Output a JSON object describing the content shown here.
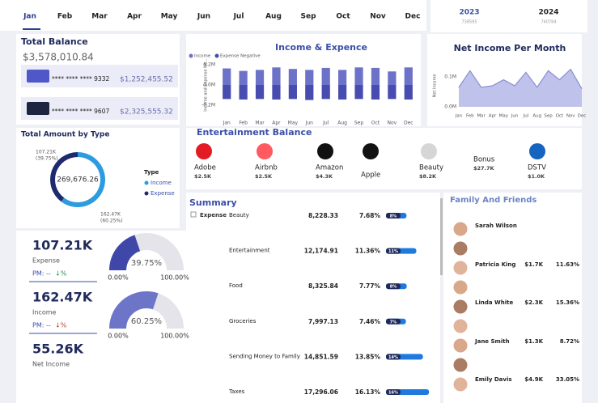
{
  "months": [
    "Jan",
    "Feb",
    "Mar",
    "Apr",
    "May",
    "Jun",
    "Jul",
    "Aug",
    "Sep",
    "Oct",
    "Nov",
    "Dec"
  ],
  "years": [
    {
      "year": "2023",
      "count": "738595"
    },
    {
      "year": "2024",
      "count": "740784"
    }
  ],
  "total_balance": {
    "title": "Total Balance",
    "amount": "$3,578,010.84",
    "cards": [
      {
        "number": "**** **** **** 9332",
        "amount": "$1,252,455.52"
      },
      {
        "number": "**** **** **** 9607",
        "amount": "$2,325,555.32"
      }
    ]
  },
  "kpis": [
    {
      "value": "107.21K",
      "label": "Expense",
      "pm": "PM: --",
      "change": "↓%"
    },
    {
      "value": "162.47K",
      "label": "Income",
      "pm": "PM: --",
      "change": "↓%"
    },
    {
      "value": "55.26K",
      "label": "Net Income"
    }
  ],
  "entertainment": {
    "title": "Entertainment Balance",
    "items": [
      {
        "name": "Adobe",
        "amount": "$2.5K"
      },
      {
        "name": "Airbnb",
        "amount": "$2.5K"
      },
      {
        "name": "Amazon",
        "amount": "$4.3K"
      },
      {
        "name": "Apple"
      },
      {
        "name": "Beauty",
        "amount": "$8.2K"
      },
      {
        "name": "Bonus",
        "amount": "$27.7K"
      },
      {
        "name": "DSTV",
        "amount": "$1.0K"
      }
    ]
  },
  "summary": {
    "title": "Summary",
    "group": "Expense",
    "rows": [
      {
        "category": "Beauty",
        "amount": "8,228.33",
        "share": "7.68%",
        "bar": 7.68,
        "bar_label": "8%"
      },
      {
        "category": "Entertainment",
        "amount": "12,174.91",
        "share": "11.36%",
        "bar": 11.36,
        "bar_label": "11%"
      },
      {
        "category": "Food",
        "amount": "8,325.84",
        "share": "7.77%",
        "bar": 7.77,
        "bar_label": "8%"
      },
      {
        "category": "Groceries",
        "amount": "7,997.13",
        "share": "7.46%",
        "bar": 7.46,
        "bar_label": "7%"
      },
      {
        "category": "Sending Money to Family",
        "amount": "14,851.59",
        "share": "13.85%",
        "bar": 13.85,
        "bar_label": "14%"
      },
      {
        "category": "Taxes",
        "amount": "17,296.06",
        "share": "16.13%",
        "bar": 16.13,
        "bar_label": "16%"
      }
    ]
  },
  "family": {
    "title": "Family And Friends",
    "people": [
      {
        "name": "Sarah Wilson"
      },
      {
        "name": "Patricia King",
        "amount": "$1.7K",
        "share": "11.63%"
      },
      {
        "name": "Linda White",
        "amount": "$2.3K",
        "share": "15.36%"
      },
      {
        "name": "Jane Smith",
        "amount": "$1.3K",
        "share": "8.72%"
      },
      {
        "name": "Emily Davis",
        "amount": "$4.9K",
        "share": "33.05%"
      }
    ]
  },
  "chart_data": [
    {
      "type": "bar",
      "title": "Income & Expence",
      "categories": [
        "Jan",
        "Feb",
        "Mar",
        "Apr",
        "May",
        "Jun",
        "Jul",
        "Aug",
        "Sep",
        "Oct",
        "Nov",
        "Dec"
      ],
      "series": [
        {
          "name": "Income",
          "color": "#6d72c9",
          "values": [
            165000,
            140000,
            150000,
            175000,
            160000,
            150000,
            170000,
            150000,
            175000,
            170000,
            135000,
            175000
          ]
        },
        {
          "name": "Expense Negative",
          "color": "#474cb0",
          "values": [
            -140000,
            -145000,
            -140000,
            -145000,
            -140000,
            -150000,
            -140000,
            -145000,
            -140000,
            -145000,
            -140000,
            -145000
          ]
        }
      ],
      "ylabel": "Income and Expense Ne...",
      "ylim": [
        -250000,
        250000
      ],
      "yticks": [
        {
          "value": -200000,
          "label": "-0.2M"
        },
        {
          "value": 0,
          "label": "0.0M"
        },
        {
          "value": 200000,
          "label": "0.2M"
        }
      ]
    },
    {
      "type": "area",
      "title": "Net Income Per Month",
      "categories": [
        "Jan",
        "Feb",
        "Mar",
        "Apr",
        "May",
        "Jun",
        "Jul",
        "Aug",
        "Sep",
        "Oct",
        "Nov",
        "Dec"
      ],
      "ylabel": "Net Income",
      "color": "#bfc2ea",
      "line_color": "#8a8fd2",
      "values": [
        65000,
        120000,
        65000,
        70000,
        90000,
        70000,
        115000,
        65000,
        120000,
        90000,
        125000,
        60000
      ],
      "ylim": [
        0,
        140000
      ],
      "yticks": [
        {
          "value": 0,
          "label": "0.0M"
        },
        {
          "value": 100000,
          "label": "0.1M"
        }
      ]
    },
    {
      "type": "pie",
      "title": "Total Amount by Type",
      "legend_title": "Type",
      "categories": [
        "Income",
        "Expense"
      ],
      "colors": [
        "#2c9be0",
        "#1f2a6e"
      ],
      "values": [
        162470,
        107210
      ],
      "value_labels": [
        "162.47K",
        "107.21K"
      ],
      "percent_labels": [
        "(60.25%)",
        "(39.75%)"
      ],
      "center_label": "269,676.26"
    },
    {
      "type": "gauge",
      "value": 39.75,
      "value_label": "39.75%",
      "color": "#3f48a8",
      "ylim": [
        0,
        100
      ],
      "ticks": [
        {
          "value": 0,
          "label": "0.00%"
        },
        {
          "value": 100,
          "label": "100.00%"
        }
      ]
    },
    {
      "type": "gauge",
      "value": 60.25,
      "value_label": "60.25%",
      "color": "#6c75c8",
      "ylim": [
        0,
        100
      ],
      "ticks": [
        {
          "value": 0,
          "label": "0.00%"
        },
        {
          "value": 100,
          "label": "100.00%"
        }
      ]
    }
  ]
}
